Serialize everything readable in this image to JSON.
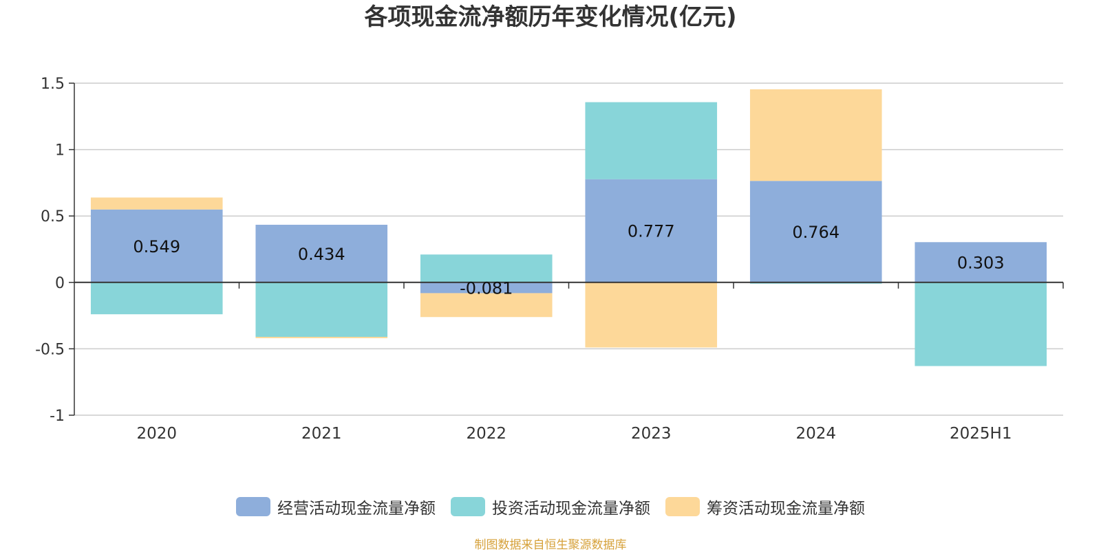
{
  "chart_data": {
    "type": "bar",
    "stacked": true,
    "title": "各项现金流净额历年变化情况(亿元)",
    "categories": [
      "2020",
      "2021",
      "2022",
      "2023",
      "2024",
      "2025H1"
    ],
    "ylim": [
      -1,
      1.5
    ],
    "yticks": [
      "1.5",
      "1",
      "0.5",
      "0",
      "-0.5",
      "-1"
    ],
    "ytick_values": [
      1.5,
      1,
      0.5,
      0,
      -0.5,
      -1
    ],
    "grid": true,
    "legend_position": "bottom",
    "series": [
      {
        "name": "经营活动现金流量净额",
        "color": "#8eaedb",
        "values": [
          0.549,
          0.434,
          -0.081,
          0.777,
          0.764,
          0.303
        ],
        "labels": [
          "0.549",
          "0.434",
          "-0.081",
          "0.777",
          "0.764",
          "0.303"
        ]
      },
      {
        "name": "投资活动现金流量净额",
        "color": "#88d5d9",
        "values": [
          -0.24,
          -0.41,
          0.21,
          0.58,
          -0.01,
          -0.63
        ]
      },
      {
        "name": "筹资活动现金流量净额",
        "color": "#fdd899",
        "values": [
          0.09,
          -0.01,
          -0.18,
          -0.49,
          0.69,
          0.0
        ]
      }
    ]
  },
  "source": "制图数据来自恒生聚源数据库"
}
